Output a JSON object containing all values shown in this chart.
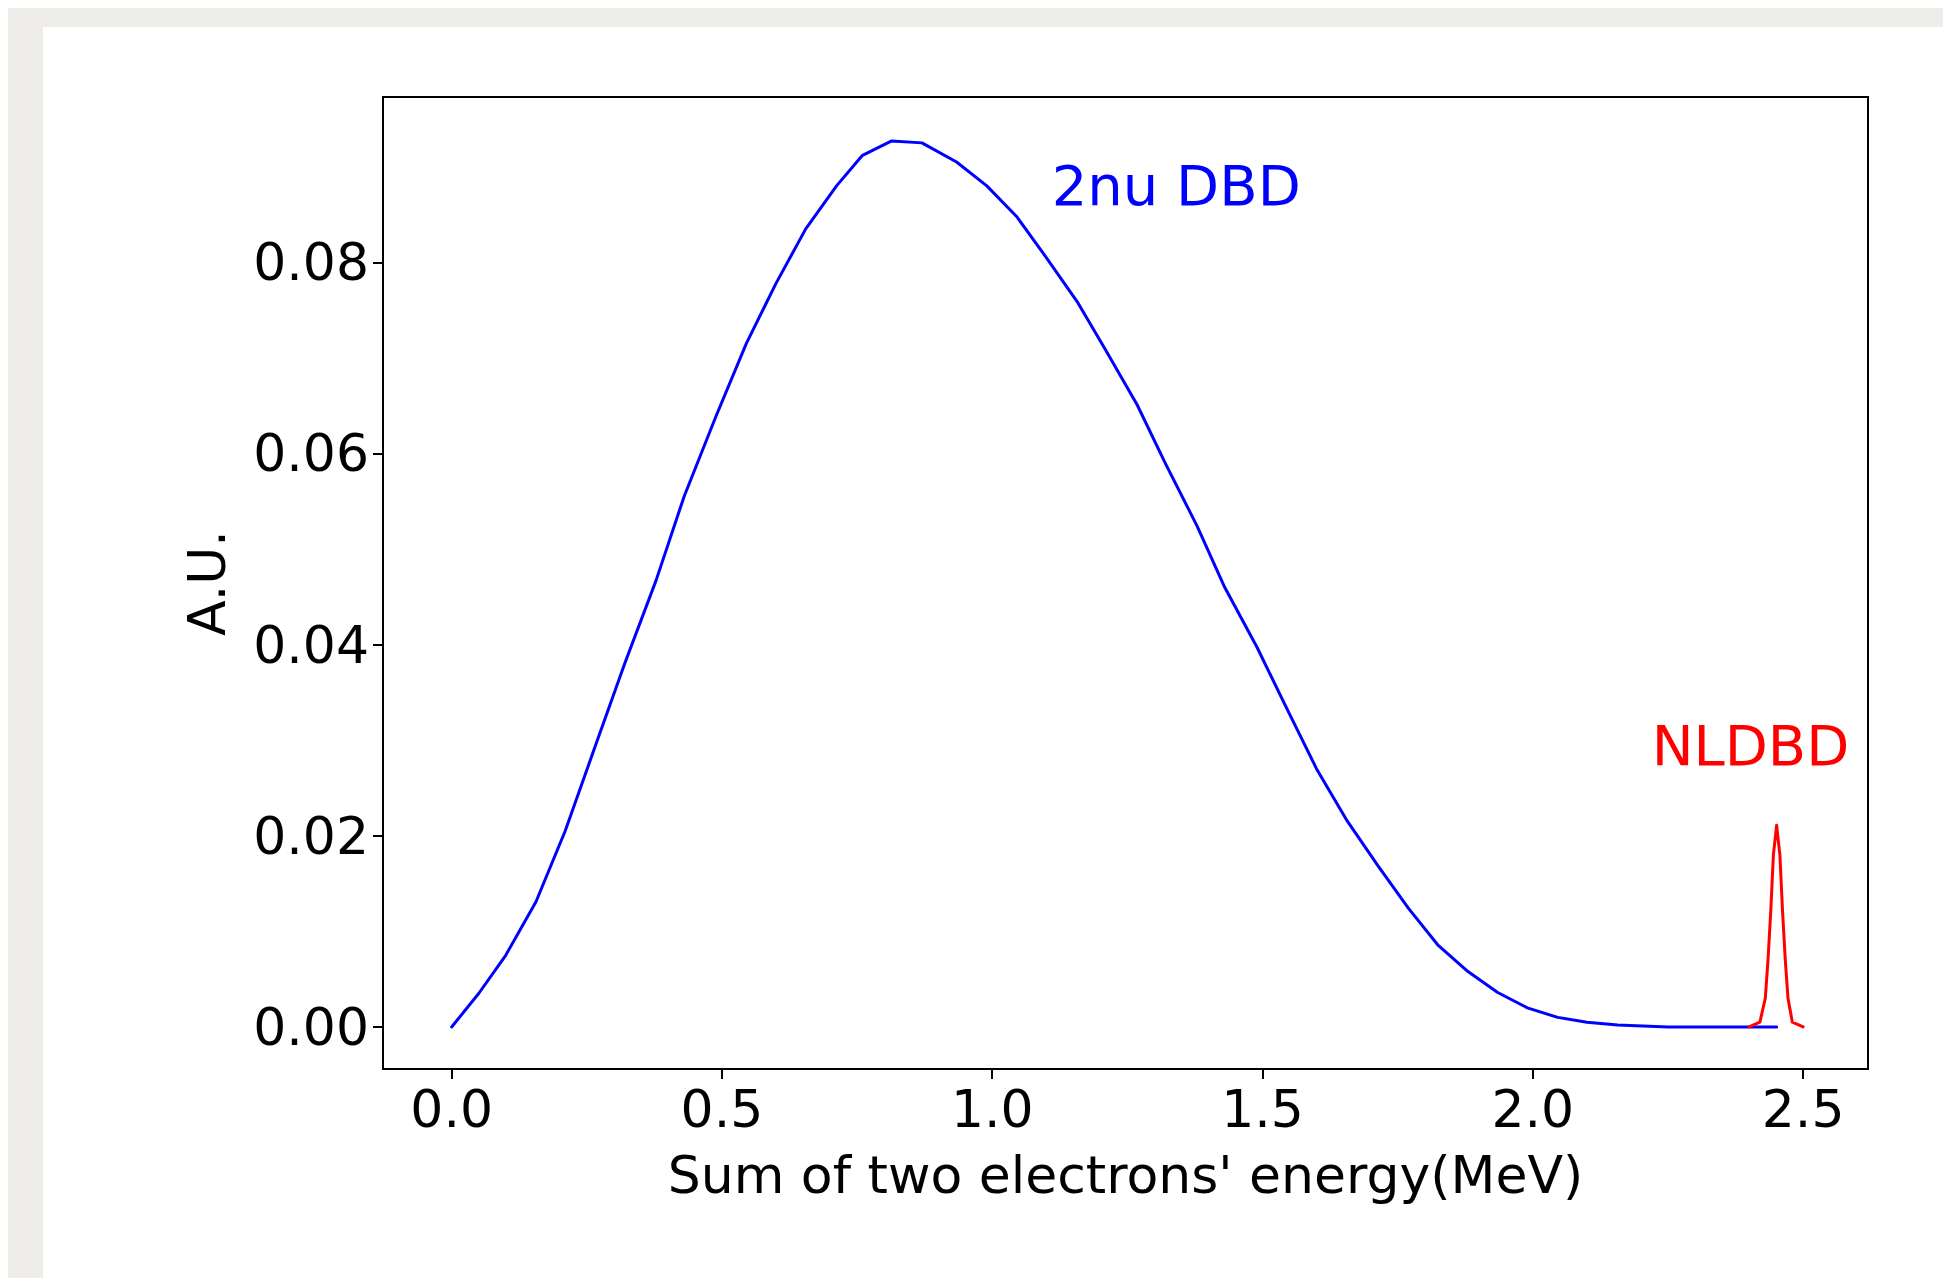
{
  "chart_data": {
    "type": "line",
    "xlabel": "Sum of two electrons' energy(MeV)",
    "ylabel": "A.U.",
    "xlim": [
      -0.127,
      2.62
    ],
    "ylim": [
      -0.0044,
      0.0973
    ],
    "xticks": [
      {
        "value": 0,
        "label": "0.0"
      },
      {
        "value": 0.5,
        "label": "0.5"
      },
      {
        "value": 1,
        "label": "1.0"
      },
      {
        "value": 1.5,
        "label": "1.5"
      },
      {
        "value": 2,
        "label": "2.0"
      },
      {
        "value": 2.5,
        "label": "2.5"
      }
    ],
    "yticks": [
      {
        "value": 0,
        "label": "0.00"
      },
      {
        "value": 0.02,
        "label": "0.02"
      },
      {
        "value": 0.04,
        "label": "0.04"
      },
      {
        "value": 0.06,
        "label": "0.06"
      },
      {
        "value": 0.08,
        "label": "0.08"
      }
    ],
    "grid": false,
    "legend": false,
    "marker": "none",
    "line_style": "solid",
    "series": [
      {
        "name": "2nu DBD",
        "color": "#0000ff",
        "x": [
          0,
          0.05,
          0.1,
          0.156,
          0.21,
          0.267,
          0.32,
          0.378,
          0.43,
          0.489,
          0.545,
          0.6,
          0.655,
          0.712,
          0.76,
          0.814,
          0.87,
          0.934,
          0.99,
          1.045,
          1.1,
          1.157,
          1.21,
          1.268,
          1.32,
          1.379,
          1.43,
          1.49,
          1.545,
          1.6,
          1.655,
          1.713,
          1.77,
          1.824,
          1.88,
          1.935,
          1.99,
          2.046,
          2.1,
          2.157,
          2.25,
          2.35,
          2.451
        ],
        "values": [
          0,
          0.0035,
          0.0075,
          0.0131,
          0.0205,
          0.0296,
          0.038,
          0.0467,
          0.0555,
          0.0639,
          0.0715,
          0.0778,
          0.0835,
          0.088,
          0.0912,
          0.0927,
          0.0925,
          0.0905,
          0.088,
          0.0848,
          0.0805,
          0.0759,
          0.0708,
          0.0651,
          0.059,
          0.0524,
          0.046,
          0.0397,
          0.0333,
          0.027,
          0.0217,
          0.0169,
          0.0124,
          0.0086,
          0.0058,
          0.0036,
          0.002,
          0.001,
          0.0005,
          0.0002,
          0,
          0,
          0
        ]
      },
      {
        "name": "NLDBD",
        "color": "#ff0000",
        "x": [
          2.4,
          2.42,
          2.43,
          2.435,
          2.44,
          2.445,
          2.451,
          2.457,
          2.462,
          2.467,
          2.472,
          2.48,
          2.5
        ],
        "values": [
          0,
          0.0005,
          0.003,
          0.007,
          0.012,
          0.018,
          0.0211,
          0.018,
          0.012,
          0.007,
          0.003,
          0.0005,
          0
        ]
      }
    ]
  }
}
